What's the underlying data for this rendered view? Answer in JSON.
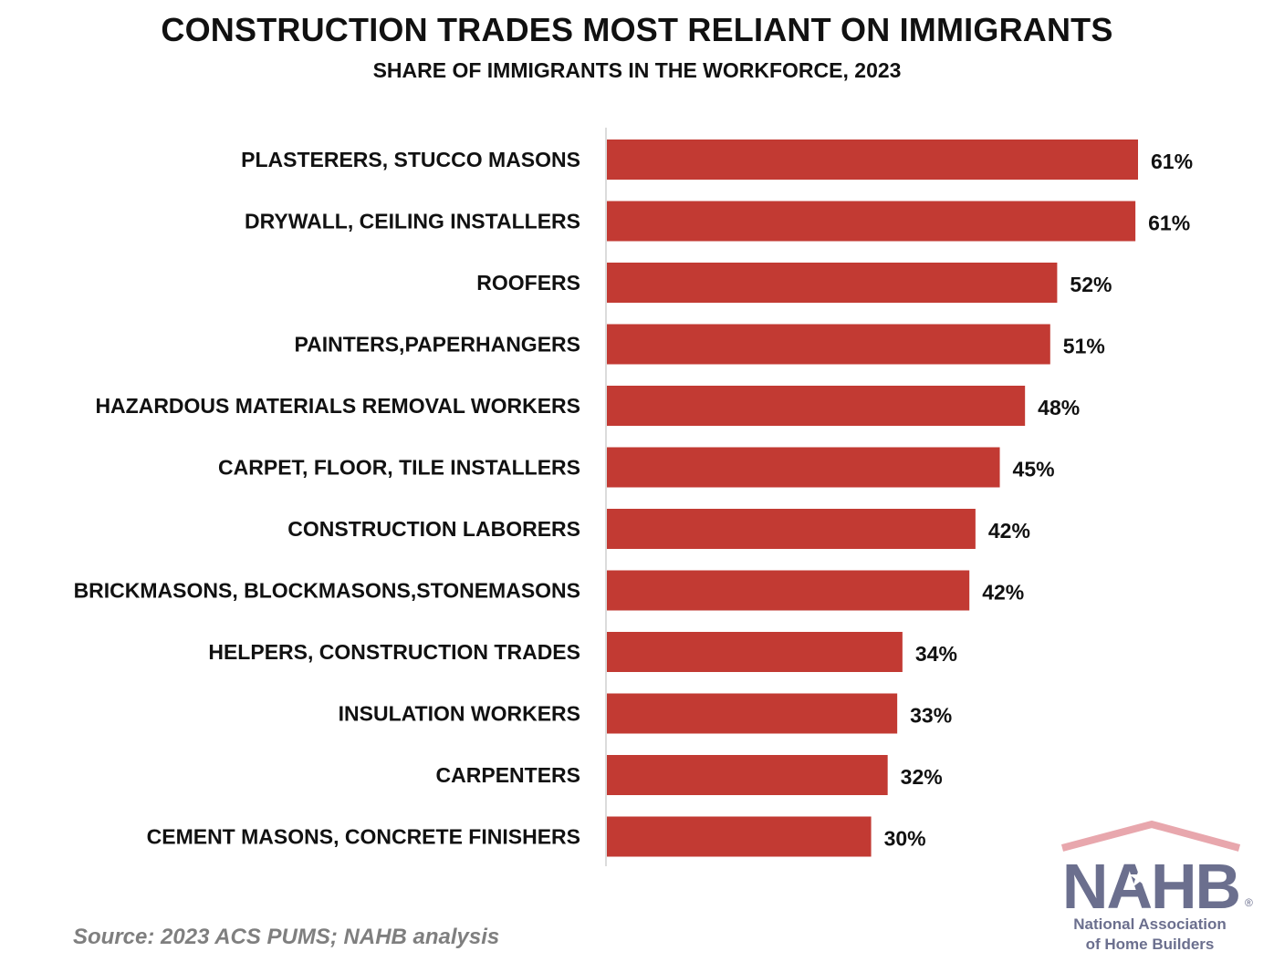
{
  "title": "CONSTRUCTION TRADES MOST RELIANT ON IMMIGRANTS",
  "subtitle": "SHARE OF IMMIGRANTS IN THE WORKFORCE, 2023",
  "source": "Source: 2023 ACS PUMS; NAHB analysis",
  "logo": {
    "text": "NAHB",
    "registered": "®",
    "line1": "National Association",
    "line2": "of Home Builders",
    "roof_color": "#e8a7ad",
    "text_color": "#6b6f8e"
  },
  "chart_data": {
    "type": "bar",
    "orientation": "horizontal",
    "title": "CONSTRUCTION TRADES MOST RELIANT ON IMMIGRANTS",
    "subtitle": "SHARE OF IMMIGRANTS IN THE WORKFORCE, 2023",
    "bar_color": "#c23a33",
    "unit": "%",
    "categories": [
      "PLASTERERS, STUCCO MASONS",
      "DRYWALL, CEILING INSTALLERS",
      "ROOFERS",
      "PAINTERS,PAPERHANGERS",
      "HAZARDOUS MATERIALS REMOVAL WORKERS",
      "CARPET, FLOOR, TILE INSTALLERS",
      "CONSTRUCTION LABORERS",
      "BRICKMASONS, BLOCKMASONS,STONEMASONS",
      "HELPERS, CONSTRUCTION TRADES",
      "INSULATION WORKERS",
      "CARPENTERS",
      "CEMENT MASONS, CONCRETE FINISHERS"
    ],
    "values": [
      61.1,
      60.8,
      51.8,
      51.0,
      48.1,
      45.2,
      42.4,
      41.7,
      34.0,
      33.4,
      32.3,
      30.4
    ],
    "value_labels": [
      "61%",
      "61%",
      "52%",
      "51%",
      "48%",
      "45%",
      "42%",
      "42%",
      "34%",
      "33%",
      "32%",
      "30%"
    ],
    "xlim": [
      0,
      61.1
    ],
    "grid": false,
    "legend": "none"
  }
}
